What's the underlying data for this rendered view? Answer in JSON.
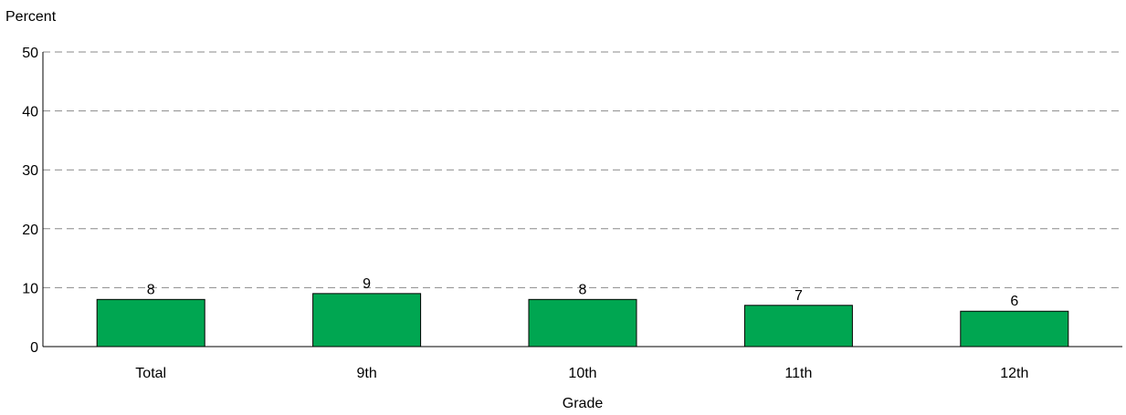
{
  "chart_data": {
    "type": "bar",
    "categories": [
      "Total",
      "9th",
      "10th",
      "11th",
      "12th"
    ],
    "values": [
      8,
      9,
      8,
      7,
      6
    ],
    "data_labels": [
      "8",
      "9",
      "8",
      "7",
      "6"
    ],
    "xlabel": "Grade",
    "ylabel": "Percent",
    "ylim": [
      0,
      50
    ],
    "yticks": [
      0,
      10,
      20,
      30,
      40,
      50
    ],
    "ytick_labels": [
      "0",
      "10",
      "20",
      "30",
      "40",
      "50"
    ],
    "grid": true,
    "legend": "none",
    "bar_color": "#00a651"
  }
}
